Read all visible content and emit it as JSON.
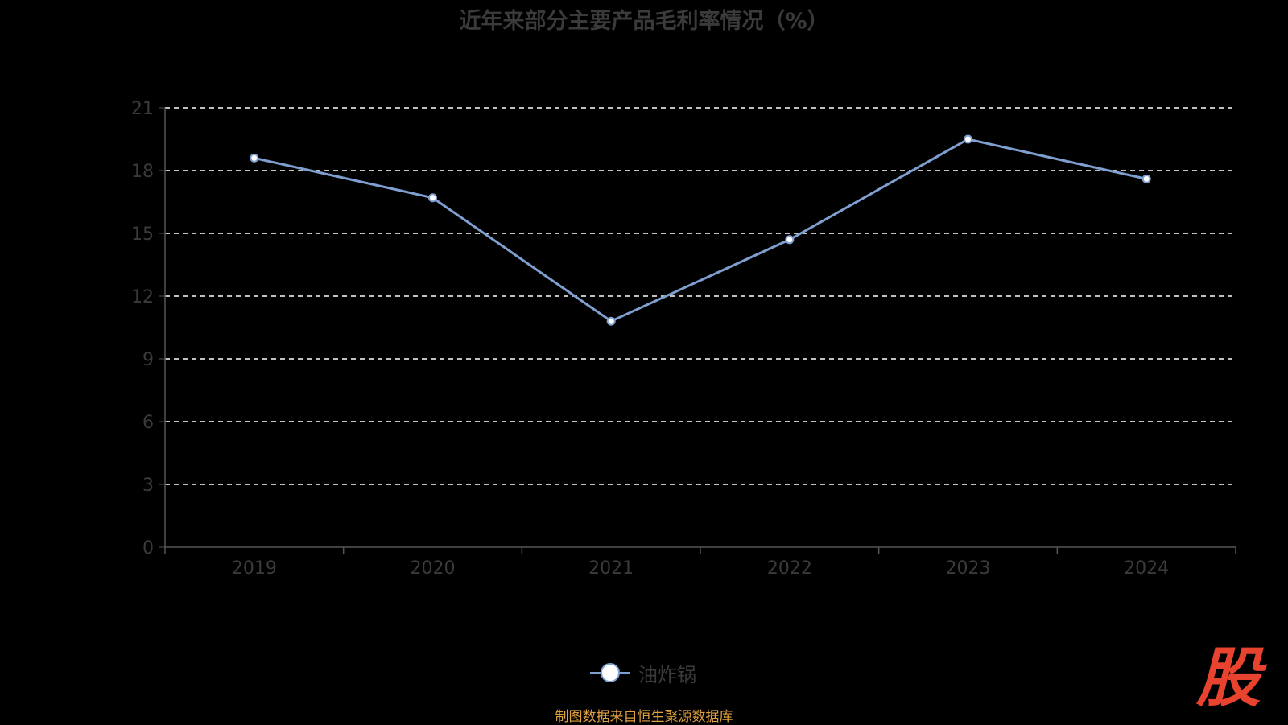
{
  "chart_data": {
    "type": "line",
    "title": "近年来部分主要产品毛利率情况（%）",
    "categories": [
      "2019",
      "2020",
      "2021",
      "2022",
      "2023",
      "2024"
    ],
    "series": [
      {
        "name": "油炸锅",
        "values": [
          18.6,
          16.7,
          10.8,
          14.7,
          19.5,
          17.6
        ],
        "color": "#7f9fd0"
      }
    ],
    "ylim": [
      0,
      21
    ],
    "yticks": [
      "0",
      "3",
      "6",
      "9",
      "12",
      "15",
      "18",
      "21"
    ],
    "grid": true,
    "legend_position": "bottom-center"
  },
  "source_note": "制图数据来自恒生聚源数据库",
  "logo_text": "股",
  "colors": {
    "background": "#000000",
    "axis": "#555555",
    "grid": "#ffffff",
    "series": "#7f9fd0",
    "text": "#3a3a3a",
    "source": "#e0a040",
    "logo": "#e8432e"
  }
}
